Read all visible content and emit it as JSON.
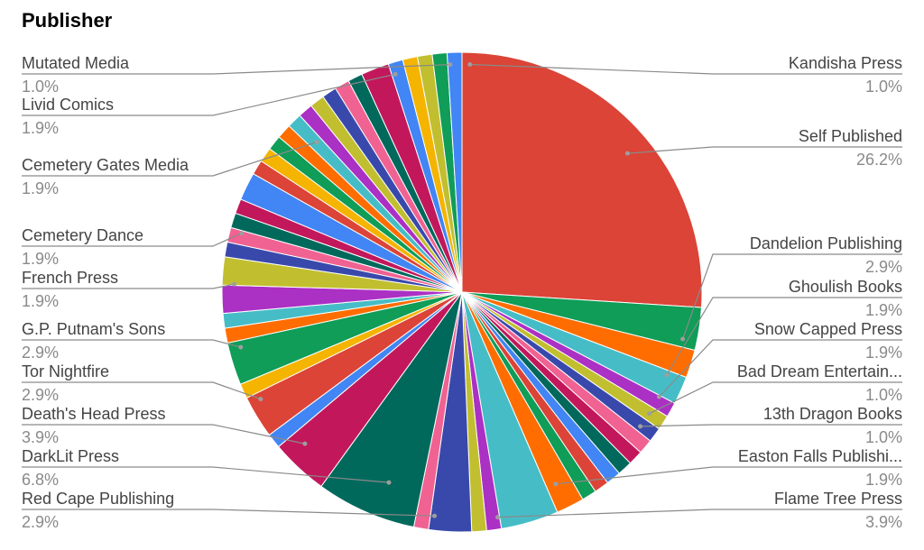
{
  "chart_data": {
    "type": "pie",
    "title": "Publisher",
    "labeled_slices": {
      "left": [
        {
          "name": "Mutated Media",
          "pct_label": "1.0%"
        },
        {
          "name": "Livid Comics",
          "pct_label": "1.9%"
        },
        {
          "name": "Cemetery Gates Media",
          "pct_label": "1.9%"
        },
        {
          "name": "Cemetery Dance",
          "pct_label": "1.9%"
        },
        {
          "name": "French Press",
          "pct_label": "1.9%"
        },
        {
          "name": "G.P. Putnam's Sons",
          "pct_label": "2.9%"
        },
        {
          "name": "Tor Nightfire",
          "pct_label": "2.9%"
        },
        {
          "name": "Death's Head Press",
          "pct_label": "3.9%"
        },
        {
          "name": "DarkLit Press",
          "pct_label": "6.8%"
        },
        {
          "name": "Red Cape Publishing",
          "pct_label": "2.9%"
        }
      ],
      "right": [
        {
          "name": "Kandisha Press",
          "pct_label": "1.0%"
        },
        {
          "name": "Self Published",
          "pct_label": "26.2%"
        },
        {
          "name": "Dandelion Publishing",
          "pct_label": "2.9%"
        },
        {
          "name": "Ghoulish Books",
          "pct_label": "1.9%"
        },
        {
          "name": "Snow Capped Press",
          "pct_label": "1.9%"
        },
        {
          "name": "Bad Dream Entertain...",
          "pct_label": "1.0%"
        },
        {
          "name": "13th Dragon Books",
          "pct_label": "1.0%"
        },
        {
          "name": "Easton Falls Publishi...",
          "pct_label": "1.9%"
        },
        {
          "name": "Flame Tree Press",
          "pct_label": "3.9%"
        }
      ]
    },
    "slices_clockwise_from_top": [
      {
        "value": 26.2,
        "color": "#DB4437"
      },
      {
        "value": 2.9,
        "color": "#0F9D58"
      },
      {
        "value": 1.9,
        "color": "#FF6D00"
      },
      {
        "value": 1.9,
        "color": "#46BDC6"
      },
      {
        "value": 1.0,
        "color": "#AB30C4"
      },
      {
        "value": 1.0,
        "color": "#C1BF2F"
      },
      {
        "value": 1.0,
        "color": "#3949AB"
      },
      {
        "value": 1.0,
        "color": "#F06292"
      },
      {
        "value": 1.0,
        "color": "#C2185B"
      },
      {
        "value": 1.0,
        "color": "#00695C"
      },
      {
        "value": 1.0,
        "color": "#4285F4"
      },
      {
        "value": 1.0,
        "color": "#DB4437"
      },
      {
        "value": 1.0,
        "color": "#0F9D58"
      },
      {
        "value": 1.9,
        "color": "#FF6D00"
      },
      {
        "value": 3.9,
        "color": "#46BDC6"
      },
      {
        "value": 1.0,
        "color": "#AB30C4"
      },
      {
        "value": 1.0,
        "color": "#C1BF2F"
      },
      {
        "value": 2.9,
        "color": "#3949AB"
      },
      {
        "value": 1.0,
        "color": "#F06292"
      },
      {
        "value": 6.8,
        "color": "#00695C"
      },
      {
        "value": 3.9,
        "color": "#C2185B"
      },
      {
        "value": 1.0,
        "color": "#4285F4"
      },
      {
        "value": 2.9,
        "color": "#DB4437"
      },
      {
        "value": 1.0,
        "color": "#F4B400"
      },
      {
        "value": 2.9,
        "color": "#0F9D58"
      },
      {
        "value": 1.0,
        "color": "#FF6D00"
      },
      {
        "value": 1.0,
        "color": "#46BDC6"
      },
      {
        "value": 1.9,
        "color": "#AB30C4"
      },
      {
        "value": 1.9,
        "color": "#C1BF2F"
      },
      {
        "value": 1.0,
        "color": "#3949AB"
      },
      {
        "value": 1.0,
        "color": "#F06292"
      },
      {
        "value": 1.0,
        "color": "#00695C"
      },
      {
        "value": 1.0,
        "color": "#C2185B"
      },
      {
        "value": 1.9,
        "color": "#4285F4"
      },
      {
        "value": 1.0,
        "color": "#DB4437"
      },
      {
        "value": 1.0,
        "color": "#F4B400"
      },
      {
        "value": 1.0,
        "color": "#0F9D58"
      },
      {
        "value": 1.0,
        "color": "#FF6D00"
      },
      {
        "value": 1.0,
        "color": "#46BDC6"
      },
      {
        "value": 1.0,
        "color": "#AB30C4"
      },
      {
        "value": 1.0,
        "color": "#C1BF2F"
      },
      {
        "value": 1.0,
        "color": "#3949AB"
      },
      {
        "value": 1.0,
        "color": "#F06292"
      },
      {
        "value": 1.0,
        "color": "#00695C"
      },
      {
        "value": 1.9,
        "color": "#C2185B"
      },
      {
        "value": 1.0,
        "color": "#4285F4"
      },
      {
        "value": 1.0,
        "color": "#F4B400"
      },
      {
        "value": 1.0,
        "color": "#C1BF2F"
      },
      {
        "value": 1.0,
        "color": "#0F9D58"
      },
      {
        "value": 1.0,
        "color": "#4285F4"
      }
    ]
  }
}
